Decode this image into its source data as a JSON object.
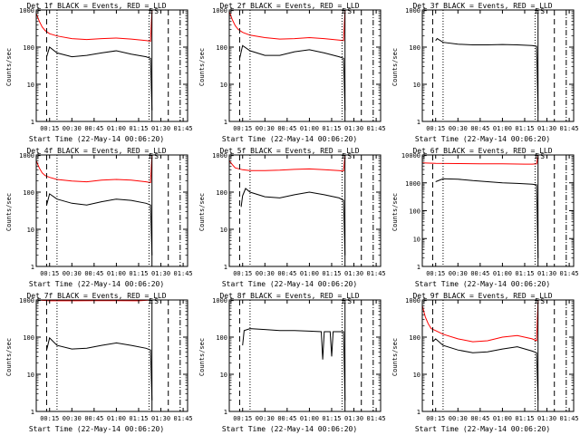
{
  "chart_data": [
    {
      "type": "line",
      "title": "Det 1f BLACK = Events, RED = LLD",
      "xlabel": "Start Time (22-May-14 00:06:20)",
      "ylabel": "Counts/sec",
      "yscale": "log",
      "ylim": [
        1,
        1000
      ],
      "xlim": [
        "00:06",
        "01:48"
      ],
      "yticks": [
        "1",
        "10",
        "100",
        "1000"
      ],
      "xticks": [
        "00:15",
        "00:30",
        "00:45",
        "01:00",
        "01:15",
        "01:30",
        "01:45"
      ],
      "markers": [
        "F",
        "E",
        "S"
      ],
      "vlines": [
        {
          "style": "dashed",
          "x": "00:13"
        },
        {
          "style": "dotted",
          "x": "00:20"
        },
        {
          "style": "dotted",
          "x": "01:22"
        },
        {
          "style": "solid",
          "x": "01:24"
        },
        {
          "style": "dashed",
          "x": "01:35"
        },
        {
          "style": "dashdot",
          "x": "01:43"
        }
      ],
      "series": [
        {
          "name": "Events",
          "color": "#000000",
          "x": [
            "00:10",
            "00:12",
            "00:13",
            "00:15",
            "00:20",
            "00:30",
            "00:40",
            "00:50",
            "01:00",
            "01:10",
            "01:20",
            "01:23",
            "01:24"
          ],
          "y": [
            null,
            null,
            55,
            100,
            70,
            55,
            60,
            70,
            80,
            65,
            55,
            50,
            2
          ]
        },
        {
          "name": "LLD",
          "color": "#ff0000",
          "x": [
            "00:06",
            "00:08",
            "00:10",
            "00:12",
            "00:15",
            "00:20",
            "00:30",
            "00:40",
            "00:50",
            "01:00",
            "01:10",
            "01:20",
            "01:23",
            "01:24"
          ],
          "y": [
            800,
            500,
            350,
            280,
            230,
            200,
            170,
            160,
            170,
            175,
            165,
            150,
            145,
            1000
          ]
        }
      ]
    },
    {
      "type": "line",
      "title": "Det 2f BLACK = Events, RED = LLD",
      "xlabel": "Start Time (22-May-14 00:06:20)",
      "ylabel": "Counts/sec",
      "yscale": "log",
      "ylim": [
        1,
        1000
      ],
      "xlim": [
        "00:06",
        "01:48"
      ],
      "yticks": [
        "1",
        "10",
        "100",
        "1000"
      ],
      "xticks": [
        "00:15",
        "00:30",
        "00:45",
        "01:00",
        "01:15",
        "01:30",
        "01:45"
      ],
      "markers": [
        "F",
        "E",
        "S"
      ],
      "vlines": [
        {
          "style": "dashed",
          "x": "00:13"
        },
        {
          "style": "dotted",
          "x": "00:20"
        },
        {
          "style": "dotted",
          "x": "01:22"
        },
        {
          "style": "solid",
          "x": "01:24"
        },
        {
          "style": "dashed",
          "x": "01:35"
        },
        {
          "style": "dashdot",
          "x": "01:43"
        }
      ],
      "series": [
        {
          "name": "Events",
          "color": "#000000",
          "x": [
            "00:12",
            "00:13",
            "00:15",
            "00:20",
            "00:30",
            "00:40",
            "00:50",
            "01:00",
            "01:10",
            "01:20",
            "01:23",
            "01:24"
          ],
          "y": [
            null,
            50,
            110,
            80,
            60,
            60,
            75,
            85,
            70,
            55,
            50,
            2
          ]
        },
        {
          "name": "LLD",
          "color": "#ff0000",
          "x": [
            "00:06",
            "00:08",
            "00:10",
            "00:12",
            "00:15",
            "00:20",
            "00:30",
            "00:40",
            "00:50",
            "01:00",
            "01:10",
            "01:20",
            "01:23",
            "01:24"
          ],
          "y": [
            900,
            550,
            380,
            300,
            250,
            210,
            180,
            165,
            170,
            180,
            170,
            155,
            150,
            1000
          ]
        }
      ]
    },
    {
      "type": "line",
      "title": "Det 3f BLACK = Events, RED = LLD",
      "xlabel": "Start Time (22-May-14 00:06:20)",
      "ylabel": "Counts/sec",
      "yscale": "log",
      "ylim": [
        1,
        1000
      ],
      "xlim": [
        "00:06",
        "01:48"
      ],
      "yticks": [
        "1",
        "10",
        "100",
        "1000"
      ],
      "xticks": [
        "00:15",
        "00:30",
        "00:45",
        "01:00",
        "01:15",
        "01:30",
        "01:45"
      ],
      "markers": [
        "F",
        "E",
        "S"
      ],
      "vlines": [
        {
          "style": "dashed",
          "x": "00:13"
        },
        {
          "style": "dotted",
          "x": "00:20"
        },
        {
          "style": "dotted",
          "x": "01:22"
        },
        {
          "style": "solid",
          "x": "01:24"
        },
        {
          "style": "dashed",
          "x": "01:35"
        },
        {
          "style": "dashdot",
          "x": "01:43"
        }
      ],
      "series": [
        {
          "name": "Events",
          "color": "#000000",
          "x": [
            "00:15",
            "00:16",
            "00:20",
            "00:30",
            "00:40",
            "00:50",
            "01:00",
            "01:10",
            "01:20",
            "01:23",
            "01:24"
          ],
          "y": [
            150,
            170,
            135,
            120,
            115,
            115,
            118,
            115,
            110,
            105,
            2
          ]
        }
      ]
    },
    {
      "type": "line",
      "title": "Det 4f BLACK = Events, RED = LLD",
      "xlabel": "Start Time (22-May-14 00:06:20)",
      "ylabel": "Counts/sec",
      "yscale": "log",
      "ylim": [
        1,
        1000
      ],
      "xlim": [
        "00:06",
        "01:48"
      ],
      "yticks": [
        "1",
        "10",
        "100",
        "1000"
      ],
      "xticks": [
        "00:15",
        "00:30",
        "00:45",
        "01:00",
        "01:15",
        "01:30",
        "01:45"
      ],
      "markers": [
        "F",
        "E",
        "S"
      ],
      "vlines": [
        {
          "style": "dashed",
          "x": "00:13"
        },
        {
          "style": "dotted",
          "x": "00:20"
        },
        {
          "style": "dotted",
          "x": "01:22"
        },
        {
          "style": "solid",
          "x": "01:24"
        },
        {
          "style": "dashed",
          "x": "01:35"
        },
        {
          "style": "dashdot",
          "x": "01:43"
        }
      ],
      "series": [
        {
          "name": "Events",
          "color": "#000000",
          "x": [
            "00:12",
            "00:13",
            "00:15",
            "00:20",
            "00:30",
            "00:40",
            "00:50",
            "01:00",
            "01:10",
            "01:20",
            "01:23",
            "01:24"
          ],
          "y": [
            null,
            45,
            90,
            65,
            50,
            45,
            55,
            65,
            60,
            50,
            45,
            2
          ]
        },
        {
          "name": "LLD",
          "color": "#ff0000",
          "x": [
            "00:06",
            "00:08",
            "00:10",
            "00:12",
            "00:15",
            "00:20",
            "00:30",
            "00:40",
            "00:50",
            "01:00",
            "01:10",
            "01:20",
            "01:23",
            "01:24"
          ],
          "y": [
            700,
            450,
            330,
            280,
            250,
            220,
            200,
            190,
            210,
            220,
            210,
            190,
            180,
            1000
          ]
        }
      ]
    },
    {
      "type": "line",
      "title": "Det 5f BLACK = Events, RED = LLD",
      "xlabel": "Start Time (22-May-14 00:06:20)",
      "ylabel": "Counts/sec",
      "yscale": "log",
      "ylim": [
        1,
        1000
      ],
      "xlim": [
        "00:06",
        "01:48"
      ],
      "yticks": [
        "1",
        "10",
        "100",
        "1000"
      ],
      "xticks": [
        "00:15",
        "00:30",
        "00:45",
        "01:00",
        "01:15",
        "01:30",
        "01:45"
      ],
      "markers": [
        "F",
        "E",
        "S"
      ],
      "vlines": [
        {
          "style": "dashed",
          "x": "00:13"
        },
        {
          "style": "dotted",
          "x": "00:20"
        },
        {
          "style": "dotted",
          "x": "01:22"
        },
        {
          "style": "solid",
          "x": "01:24"
        },
        {
          "style": "dashed",
          "x": "01:35"
        },
        {
          "style": "dashdot",
          "x": "01:43"
        }
      ],
      "series": [
        {
          "name": "Events",
          "color": "#000000",
          "x": [
            "00:14",
            "00:15",
            "00:17",
            "00:20",
            "00:30",
            "00:40",
            "00:50",
            "01:00",
            "01:10",
            "01:20",
            "01:23",
            "01:24"
          ],
          "y": [
            40,
            80,
            125,
            100,
            75,
            70,
            85,
            100,
            85,
            70,
            60,
            2
          ]
        },
        {
          "name": "LLD",
          "color": "#ff0000",
          "x": [
            "00:06",
            "00:08",
            "00:10",
            "00:15",
            "00:20",
            "00:30",
            "00:40",
            "00:50",
            "01:00",
            "01:10",
            "01:20",
            "01:23",
            "01:24"
          ],
          "y": [
            700,
            550,
            450,
            400,
            380,
            380,
            390,
            410,
            420,
            400,
            380,
            370,
            1000
          ]
        }
      ]
    },
    {
      "type": "line",
      "title": "Det 6f BLACK = Events, RED = LLD",
      "xlabel": "Start Time (22-May-14 00:06:20)",
      "ylabel": "Counts/sec",
      "yscale": "log",
      "ylim": [
        1,
        10000
      ],
      "xlim": [
        "00:06",
        "01:48"
      ],
      "yticks": [
        "1",
        "10",
        "100",
        "1000",
        "10000"
      ],
      "xticks": [
        "00:15",
        "00:30",
        "00:45",
        "01:00",
        "01:15",
        "01:30",
        "01:45"
      ],
      "markers": [
        "F",
        "E",
        "S"
      ],
      "vlines": [
        {
          "style": "dashed",
          "x": "00:13"
        },
        {
          "style": "dotted",
          "x": "00:20"
        },
        {
          "style": "dotted",
          "x": "01:22"
        },
        {
          "style": "solid",
          "x": "01:24"
        },
        {
          "style": "dashed",
          "x": "01:35"
        },
        {
          "style": "dashdot",
          "x": "01:43"
        }
      ],
      "series": [
        {
          "name": "Events",
          "color": "#000000",
          "x": [
            "00:15",
            "00:20",
            "00:30",
            "00:40",
            "00:50",
            "01:00",
            "01:10",
            "01:20",
            "01:23",
            "01:24"
          ],
          "y": [
            1100,
            1400,
            1350,
            1200,
            1100,
            1000,
            950,
            900,
            850,
            2
          ]
        },
        {
          "name": "LLD",
          "color": "#ff0000",
          "x": [
            "00:06",
            "00:15",
            "00:30",
            "00:45",
            "01:00",
            "01:15",
            "01:20",
            "01:23",
            "01:24"
          ],
          "y": [
            5200,
            5000,
            4900,
            4800,
            4800,
            4700,
            4700,
            4800,
            10000
          ]
        }
      ]
    },
    {
      "type": "line",
      "title": "Det 7f BLACK = Events, RED = LLD",
      "xlabel": "Start Time (22-May-14 00:06:20)",
      "ylabel": "Counts/sec",
      "yscale": "log",
      "ylim": [
        1,
        1000
      ],
      "xlim": [
        "00:06",
        "01:48"
      ],
      "yticks": [
        "1",
        "10",
        "100",
        "1000"
      ],
      "xticks": [
        "00:15",
        "00:30",
        "00:45",
        "01:00",
        "01:15",
        "01:30",
        "01:45"
      ],
      "markers": [
        "F",
        "E",
        "S"
      ],
      "vlines": [
        {
          "style": "dashed",
          "x": "00:13"
        },
        {
          "style": "dotted",
          "x": "00:20"
        },
        {
          "style": "dotted",
          "x": "01:22"
        },
        {
          "style": "solid",
          "x": "01:24"
        },
        {
          "style": "dashed",
          "x": "01:35"
        },
        {
          "style": "dashdot",
          "x": "01:43"
        }
      ],
      "series": [
        {
          "name": "Events",
          "color": "#000000",
          "x": [
            "00:13",
            "00:15",
            "00:20",
            "00:30",
            "00:40",
            "00:50",
            "01:00",
            "01:10",
            "01:20",
            "01:23",
            "01:24"
          ],
          "y": [
            45,
            95,
            60,
            48,
            50,
            60,
            70,
            60,
            50,
            45,
            2
          ]
        },
        {
          "name": "LLD",
          "color": "#ff0000",
          "x": [
            "00:06",
            "00:15",
            "00:30",
            "00:45",
            "01:00",
            "01:15",
            "01:24"
          ],
          "y": [
            1000,
            950,
            950,
            960,
            960,
            950,
            1000
          ]
        }
      ]
    },
    {
      "type": "line",
      "title": "Det 8f BLACK = Events, RED = LLD",
      "xlabel": "Start Time (22-May-14 00:06:20)",
      "ylabel": "Counts/sec",
      "yscale": "log",
      "ylim": [
        1,
        1000
      ],
      "xlim": [
        "00:06",
        "01:48"
      ],
      "yticks": [
        "1",
        "10",
        "100",
        "1000"
      ],
      "xticks": [
        "00:15",
        "00:30",
        "00:45",
        "01:00",
        "01:15",
        "01:30",
        "01:45"
      ],
      "markers": [
        "F",
        "E",
        "S"
      ],
      "vlines": [
        {
          "style": "dashed",
          "x": "00:13"
        },
        {
          "style": "dotted",
          "x": "00:20"
        },
        {
          "style": "dotted",
          "x": "01:22"
        },
        {
          "style": "solid",
          "x": "01:24"
        },
        {
          "style": "dashed",
          "x": "01:35"
        },
        {
          "style": "dashdot",
          "x": "01:43"
        }
      ],
      "series": [
        {
          "name": "Events",
          "color": "#000000",
          "x": [
            "00:15",
            "00:16",
            "00:20",
            "00:30",
            "00:40",
            "00:50",
            "01:00",
            "01:08",
            "01:09",
            "01:10",
            "01:14",
            "01:15",
            "01:16",
            "01:20",
            "01:23",
            "01:24"
          ],
          "y": [
            60,
            150,
            170,
            160,
            150,
            150,
            145,
            140,
            25,
            140,
            140,
            30,
            140,
            140,
            140,
            2
          ]
        },
        {
          "name": "LLD",
          "color": "#ff0000",
          "x": [
            "00:06",
            "00:15",
            "00:30",
            "00:45",
            "01:00",
            "01:24"
          ],
          "y": [
            1000,
            1000,
            1000,
            1000,
            1000,
            1000
          ]
        }
      ]
    },
    {
      "type": "line",
      "title": "Det 9f BLACK = Events, RED = LLD",
      "xlabel": "Start Time (22-May-14 00:06:20)",
      "ylabel": "Counts/sec",
      "yscale": "log",
      "ylim": [
        1,
        1000
      ],
      "xlim": [
        "00:06",
        "01:48"
      ],
      "yticks": [
        "1",
        "10",
        "100",
        "1000"
      ],
      "xticks": [
        "00:15",
        "00:30",
        "00:45",
        "01:00",
        "01:15",
        "01:30",
        "01:45"
      ],
      "markers": [
        "F",
        "E",
        "S"
      ],
      "vlines": [
        {
          "style": "dashed",
          "x": "00:13"
        },
        {
          "style": "dotted",
          "x": "00:20"
        },
        {
          "style": "dotted",
          "x": "01:22"
        },
        {
          "style": "solid",
          "x": "01:24"
        },
        {
          "style": "dashed",
          "x": "01:35"
        },
        {
          "style": "dashdot",
          "x": "01:43"
        }
      ],
      "series": [
        {
          "name": "Events",
          "color": "#000000",
          "x": [
            "00:13",
            "00:15",
            "00:20",
            "00:30",
            "00:40",
            "00:50",
            "01:00",
            "01:10",
            "01:20",
            "01:23",
            "01:24"
          ],
          "y": [
            75,
            90,
            60,
            45,
            38,
            40,
            48,
            55,
            42,
            38,
            2
          ]
        },
        {
          "name": "LLD",
          "color": "#ff0000",
          "x": [
            "00:06",
            "00:08",
            "00:10",
            "00:12",
            "00:15",
            "00:20",
            "00:30",
            "00:40",
            "00:50",
            "01:00",
            "01:10",
            "01:20",
            "01:23",
            "01:24"
          ],
          "y": [
            700,
            350,
            230,
            170,
            150,
            120,
            90,
            75,
            80,
            100,
            110,
            90,
            80,
            1000
          ]
        }
      ]
    }
  ]
}
